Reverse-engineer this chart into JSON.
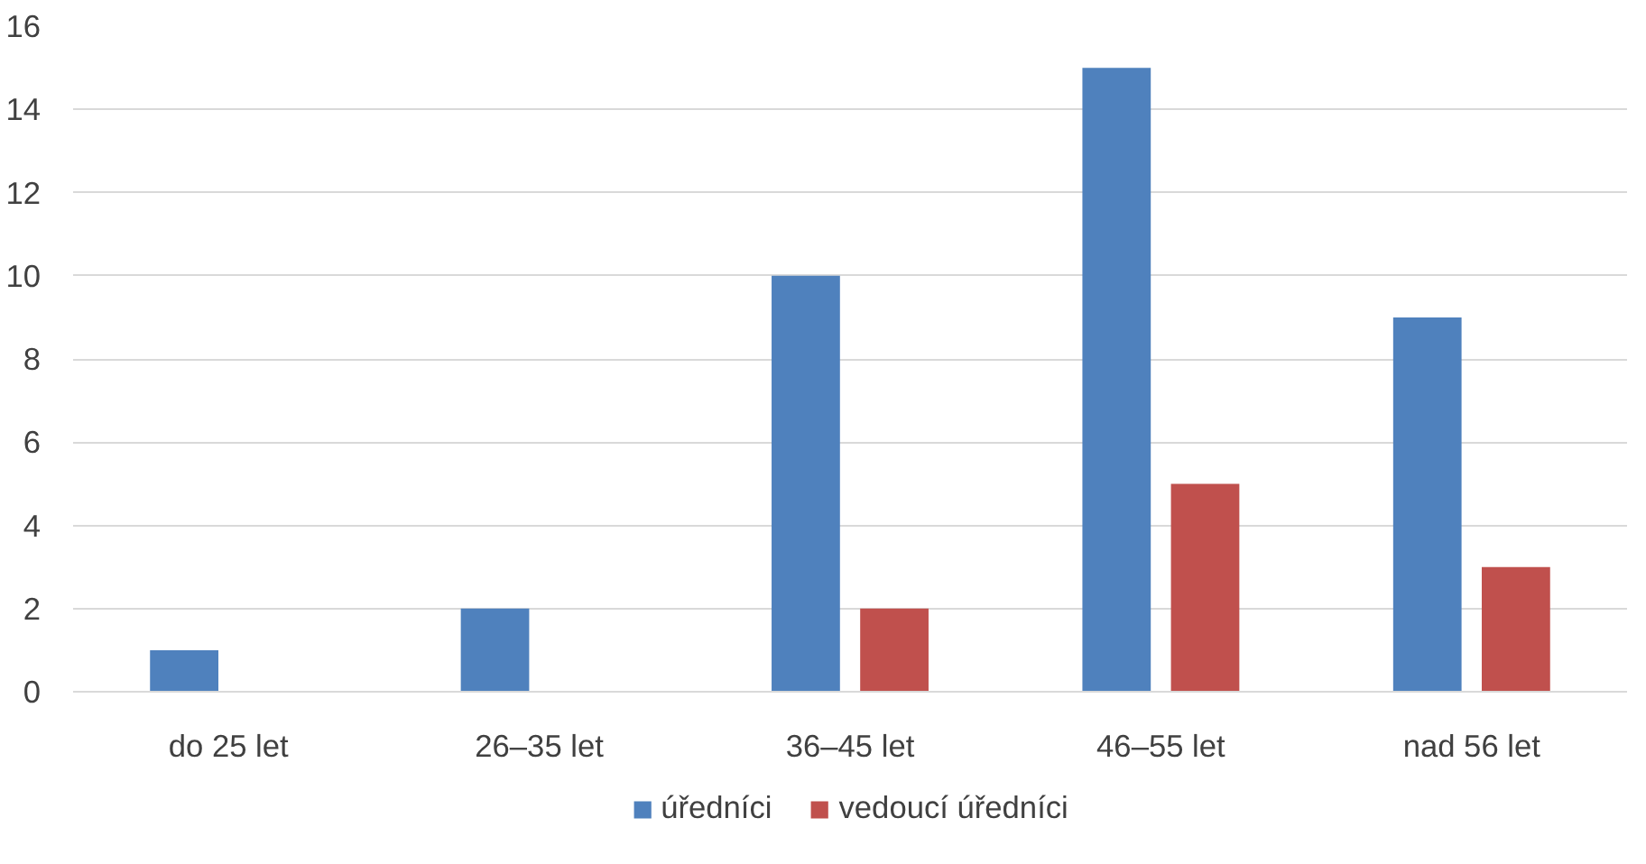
{
  "chart_data": {
    "type": "bar",
    "categories": [
      "do 25 let",
      "26–35 let",
      "36–45 let",
      "46–55 let",
      "nad 56 let"
    ],
    "series": [
      {
        "name": "úředníci",
        "color": "#4f81bd",
        "values": [
          1,
          2,
          10,
          15,
          9
        ]
      },
      {
        "name": "vedoucí úředníci",
        "color": "#c0504d",
        "values": [
          0,
          0,
          2,
          5,
          3
        ]
      }
    ],
    "ylim": [
      0,
      16
    ],
    "yticks": [
      0,
      2,
      4,
      6,
      8,
      10,
      12,
      14,
      16
    ],
    "grid": "y",
    "legend": "bottom"
  }
}
